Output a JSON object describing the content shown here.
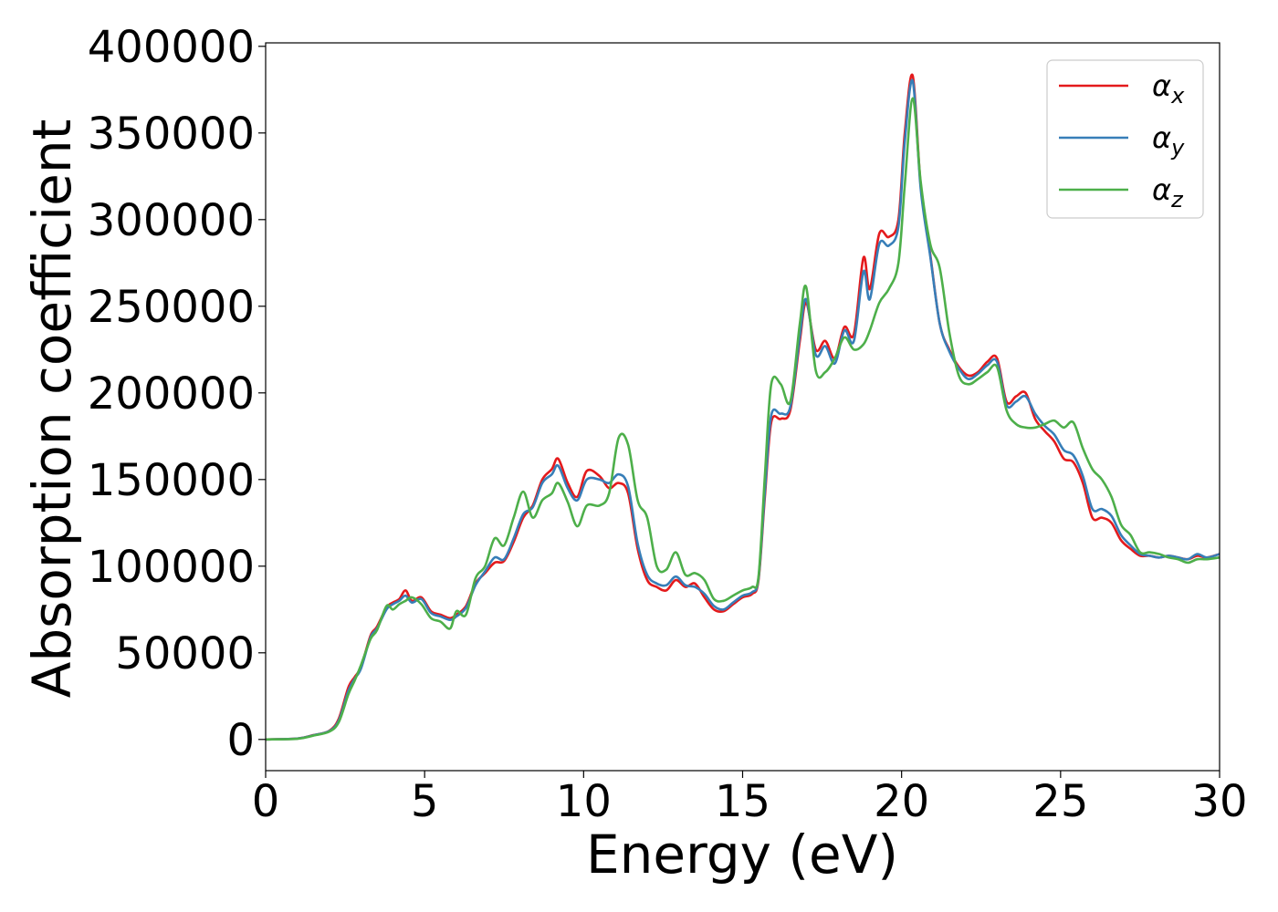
{
  "chart_data": {
    "type": "line",
    "xlabel": "Energy (eV)",
    "ylabel": "Absorption coefficient",
    "xlim": [
      0,
      30
    ],
    "ylim": [
      -18000,
      402000
    ],
    "xticks": [
      0,
      5,
      10,
      15,
      20,
      25,
      30
    ],
    "yticks": [
      0,
      50000,
      100000,
      150000,
      200000,
      250000,
      300000,
      350000,
      400000
    ],
    "xtick_labels": [
      "0",
      "5",
      "10",
      "15",
      "20",
      "25",
      "30"
    ],
    "ytick_labels": [
      "0",
      "50000",
      "100000",
      "150000",
      "200000",
      "250000",
      "300000",
      "350000",
      "400000"
    ],
    "grid": false,
    "legend_position": "top-right",
    "series": [
      {
        "name": "αx",
        "label_base": "α",
        "label_sub": "x",
        "color": "#e41a1c",
        "x": [
          0,
          1,
          1.5,
          2,
          2.3,
          2.6,
          2.8,
          3.0,
          3.3,
          3.5,
          3.8,
          4.0,
          4.2,
          4.4,
          4.6,
          4.9,
          5.2,
          5.5,
          5.8,
          6.0,
          6.3,
          6.6,
          6.9,
          7.2,
          7.5,
          7.8,
          8.1,
          8.4,
          8.7,
          9.0,
          9.2,
          9.5,
          9.8,
          10.1,
          10.5,
          10.8,
          11.1,
          11.4,
          11.7,
          12.0,
          12.3,
          12.6,
          12.9,
          13.2,
          13.5,
          13.8,
          14.1,
          14.4,
          14.7,
          15.0,
          15.3,
          15.5,
          15.7,
          15.9,
          16.2,
          16.5,
          16.8,
          17.0,
          17.3,
          17.6,
          17.9,
          18.2,
          18.5,
          18.8,
          19.0,
          19.3,
          19.6,
          19.9,
          20.1,
          20.35,
          20.6,
          20.9,
          21.2,
          21.5,
          21.8,
          22.1,
          22.4,
          22.7,
          23.0,
          23.3,
          23.6,
          23.9,
          24.2,
          24.5,
          24.8,
          25.1,
          25.4,
          25.7,
          26.0,
          26.3,
          26.6,
          26.9,
          27.2,
          27.5,
          27.8,
          28.1,
          28.4,
          28.7,
          29.0,
          29.3,
          29.6,
          30.0
        ],
        "y": [
          0,
          500,
          2500,
          5000,
          12000,
          30000,
          36000,
          42000,
          60000,
          65000,
          76000,
          79000,
          81000,
          86000,
          80000,
          82000,
          74000,
          72000,
          70000,
          72000,
          77000,
          90000,
          96000,
          102000,
          103000,
          114000,
          128000,
          135000,
          150000,
          156000,
          162000,
          148000,
          140000,
          155000,
          152000,
          145000,
          148000,
          142000,
          110000,
          92000,
          88000,
          86000,
          92000,
          88000,
          90000,
          82000,
          75000,
          74000,
          78000,
          82000,
          84000,
          92000,
          140000,
          183000,
          185000,
          190000,
          230000,
          252000,
          225000,
          230000,
          220000,
          238000,
          234000,
          278000,
          260000,
          292000,
          290000,
          300000,
          350000,
          383000,
          320000,
          280000,
          240000,
          225000,
          215000,
          210000,
          212000,
          218000,
          220000,
          195000,
          198000,
          200000,
          185000,
          178000,
          172000,
          162000,
          160000,
          148000,
          128000,
          128000,
          125000,
          115000,
          110000,
          106000,
          106000,
          105000,
          106000,
          105000,
          104000,
          106000,
          105000,
          107000
        ]
      },
      {
        "name": "αy",
        "label_base": "α",
        "label_sub": "y",
        "color": "#377eb8",
        "x": [
          0,
          1,
          1.5,
          2,
          2.3,
          2.6,
          2.8,
          3.0,
          3.3,
          3.5,
          3.8,
          4.0,
          4.2,
          4.4,
          4.6,
          4.9,
          5.2,
          5.5,
          5.8,
          6.0,
          6.3,
          6.6,
          6.9,
          7.2,
          7.5,
          7.8,
          8.1,
          8.4,
          8.7,
          9.0,
          9.2,
          9.5,
          9.8,
          10.1,
          10.5,
          10.8,
          11.1,
          11.4,
          11.7,
          12.0,
          12.3,
          12.6,
          12.9,
          13.2,
          13.5,
          13.8,
          14.1,
          14.4,
          14.7,
          15.0,
          15.3,
          15.5,
          15.7,
          15.9,
          16.2,
          16.5,
          16.8,
          17.0,
          17.3,
          17.6,
          17.9,
          18.2,
          18.5,
          18.8,
          19.0,
          19.3,
          19.6,
          19.9,
          20.1,
          20.35,
          20.6,
          20.9,
          21.2,
          21.5,
          21.8,
          22.1,
          22.4,
          22.7,
          23.0,
          23.3,
          23.6,
          23.9,
          24.2,
          24.5,
          24.8,
          25.1,
          25.4,
          25.7,
          26.0,
          26.3,
          26.6,
          26.9,
          27.2,
          27.5,
          27.8,
          28.1,
          28.4,
          28.7,
          29.0,
          29.3,
          29.6,
          30.0
        ],
        "y": [
          0,
          500,
          2400,
          4800,
          11000,
          28000,
          35000,
          41000,
          59000,
          64000,
          75000,
          78000,
          80000,
          83000,
          79000,
          81000,
          73000,
          71000,
          69000,
          71000,
          76000,
          89000,
          97000,
          105000,
          104000,
          116000,
          130000,
          134000,
          148000,
          153000,
          158000,
          145000,
          138000,
          150000,
          150000,
          148000,
          153000,
          146000,
          113000,
          95000,
          90000,
          89000,
          94000,
          89000,
          88000,
          84000,
          77000,
          75000,
          79000,
          83000,
          85000,
          93000,
          143000,
          187000,
          188000,
          192000,
          233000,
          254000,
          222000,
          227000,
          217000,
          236000,
          230000,
          270000,
          254000,
          286000,
          285000,
          296000,
          345000,
          380000,
          318000,
          279000,
          240000,
          224000,
          214000,
          208000,
          211000,
          216000,
          218000,
          193000,
          195000,
          198000,
          188000,
          181000,
          176000,
          167000,
          164000,
          152000,
          133000,
          133000,
          129000,
          118000,
          112000,
          107000,
          106000,
          105000,
          106000,
          105000,
          104000,
          107000,
          105000,
          107000
        ]
      },
      {
        "name": "αz",
        "label_base": "α",
        "label_sub": "z",
        "color": "#4daf4a",
        "x": [
          0,
          1,
          1.5,
          2,
          2.3,
          2.6,
          2.8,
          3.0,
          3.3,
          3.5,
          3.8,
          4.0,
          4.2,
          4.4,
          4.6,
          4.9,
          5.2,
          5.5,
          5.8,
          6.0,
          6.3,
          6.6,
          6.9,
          7.2,
          7.5,
          7.8,
          8.1,
          8.4,
          8.7,
          9.0,
          9.2,
          9.5,
          9.8,
          10.1,
          10.5,
          10.8,
          11.1,
          11.4,
          11.7,
          12.0,
          12.3,
          12.6,
          12.9,
          13.2,
          13.5,
          13.8,
          14.1,
          14.4,
          14.7,
          15.0,
          15.3,
          15.5,
          15.7,
          15.9,
          16.2,
          16.5,
          16.8,
          17.0,
          17.3,
          17.6,
          17.9,
          18.2,
          18.5,
          18.8,
          19.0,
          19.3,
          19.6,
          19.9,
          20.1,
          20.35,
          20.6,
          20.9,
          21.2,
          21.5,
          21.8,
          22.1,
          22.4,
          22.7,
          23.0,
          23.3,
          23.6,
          23.9,
          24.2,
          24.5,
          24.8,
          25.1,
          25.4,
          25.7,
          26.0,
          26.3,
          26.6,
          26.9,
          27.2,
          27.5,
          27.8,
          28.1,
          28.4,
          28.7,
          29.0,
          29.3,
          29.6,
          30.0
        ],
        "y": [
          0,
          400,
          2200,
          4500,
          10000,
          26000,
          34000,
          43000,
          58000,
          63000,
          77000,
          75000,
          78000,
          80000,
          82000,
          78000,
          70000,
          68000,
          64000,
          74000,
          72000,
          93000,
          100000,
          116000,
          112000,
          128000,
          143000,
          128000,
          138000,
          142000,
          148000,
          137000,
          123000,
          135000,
          135000,
          142000,
          174000,
          170000,
          138000,
          128000,
          100000,
          98000,
          108000,
          95000,
          96000,
          92000,
          81000,
          80000,
          83000,
          86000,
          88000,
          94000,
          152000,
          205000,
          205000,
          195000,
          240000,
          261000,
          213000,
          212000,
          220000,
          232000,
          225000,
          228000,
          236000,
          252000,
          260000,
          275000,
          320000,
          370000,
          322000,
          286000,
          272000,
          235000,
          210000,
          205000,
          208000,
          212000,
          215000,
          190000,
          182000,
          180000,
          180000,
          182000,
          184000,
          180000,
          183000,
          168000,
          156000,
          150000,
          140000,
          124000,
          118000,
          108000,
          108000,
          107000,
          105000,
          104000,
          102000,
          104000,
          104000,
          105000
        ]
      }
    ]
  }
}
